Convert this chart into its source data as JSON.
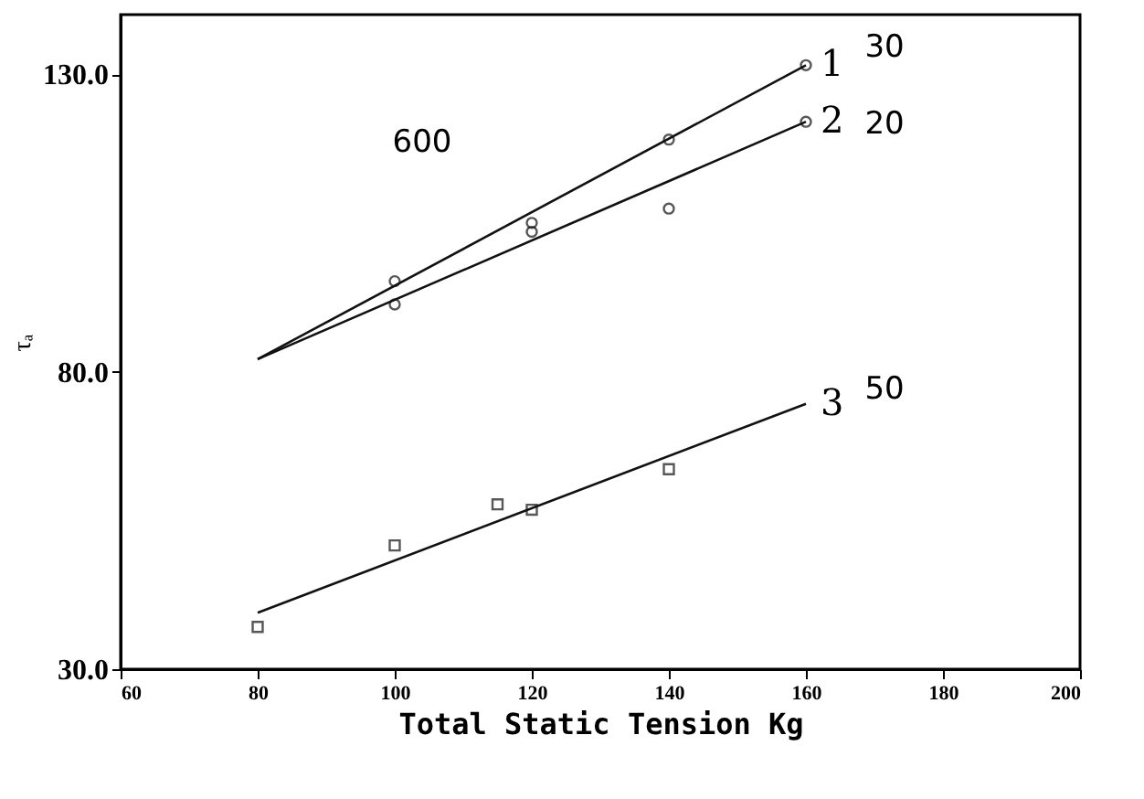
{
  "chart_data": {
    "type": "scatter",
    "xlabel": "Total Static Tension Kg",
    "ylabel": "τₐ",
    "xlim": [
      60,
      200
    ],
    "xticks": [
      60,
      80,
      100,
      120,
      140,
      160,
      180,
      200
    ],
    "ylim": [
      30,
      140
    ],
    "yticks": [
      {
        "value": 30,
        "label": "30.0"
      },
      {
        "value": 80,
        "label": "80.0"
      },
      {
        "value": 130,
        "label": "130.0"
      }
    ],
    "grid": false,
    "series": [
      {
        "type": "scatter",
        "marker": "circle",
        "color": "#111111",
        "x": [
          100,
          120,
          140,
          160
        ],
        "values": [
          95.2,
          105,
          119,
          131.5
        ]
      },
      {
        "type": "scatter",
        "marker": "circle",
        "color": "#111111",
        "x": [
          100,
          120,
          140,
          160
        ],
        "values": [
          91.3,
          103.5,
          107.4,
          122
        ]
      },
      {
        "type": "scatter",
        "marker": "square",
        "color": "#111111",
        "x": [
          80,
          100,
          115,
          120,
          140
        ],
        "values": [
          37.1,
          50.8,
          57.7,
          56.8,
          63.6
        ]
      },
      {
        "type": "line",
        "name": "1",
        "line_style": "solid",
        "color": "#111111",
        "x": [
          80,
          160
        ],
        "values": [
          82.1,
          131.5
        ]
      },
      {
        "type": "line",
        "name": "2",
        "line_style": "solid",
        "color": "#111111",
        "x": [
          80,
          160
        ],
        "values": [
          82.1,
          122
        ]
      },
      {
        "type": "line",
        "name": "3",
        "line_style": "solid",
        "color": "#111111",
        "x": [
          80,
          160
        ],
        "values": [
          39.5,
          74.6
        ]
      }
    ],
    "annotations": [
      "600",
      "30",
      "20",
      "50"
    ]
  }
}
